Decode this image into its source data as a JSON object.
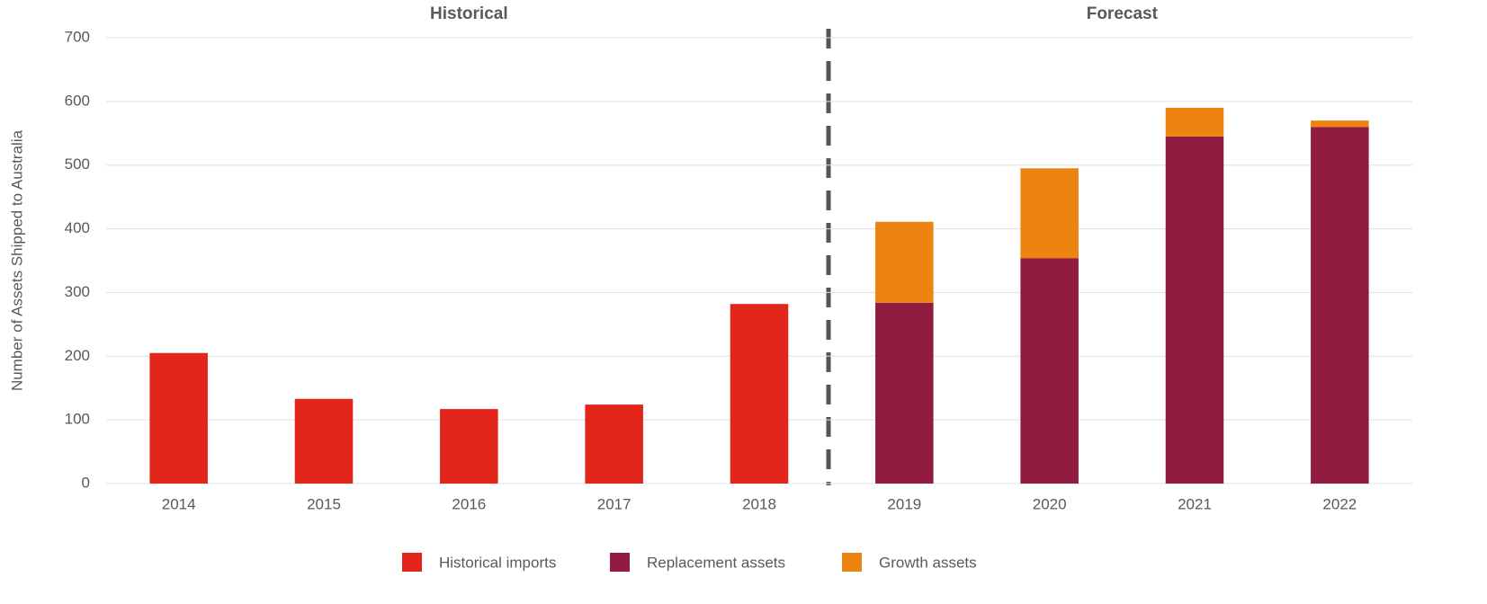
{
  "chart_data": {
    "type": "stacked_bar",
    "y_label": "Number of Assets Shipped to Australia",
    "annotations": [
      "Historical",
      "Forecast"
    ],
    "categories": [
      "2014",
      "2015",
      "2016",
      "2017",
      "2018",
      "2019",
      "2020",
      "2021",
      "2022"
    ],
    "series": [
      {
        "name": "Historical imports",
        "color": "#e2261b",
        "values": [
          205,
          133,
          117,
          124,
          282,
          null,
          null,
          null,
          null
        ]
      },
      {
        "name": "Replacement assets",
        "color": "#921c40",
        "values": [
          null,
          null,
          null,
          null,
          null,
          284,
          354,
          545,
          560
        ]
      },
      {
        "name": "Growth assets",
        "color": "#ed8311",
        "values": [
          null,
          null,
          null,
          null,
          null,
          127,
          141,
          45,
          10
        ]
      }
    ],
    "ylim": [
      0,
      700
    ],
    "yticks": [
      0,
      100,
      200,
      300,
      400,
      500,
      600,
      700
    ],
    "grid": true,
    "legend": "bottom"
  }
}
